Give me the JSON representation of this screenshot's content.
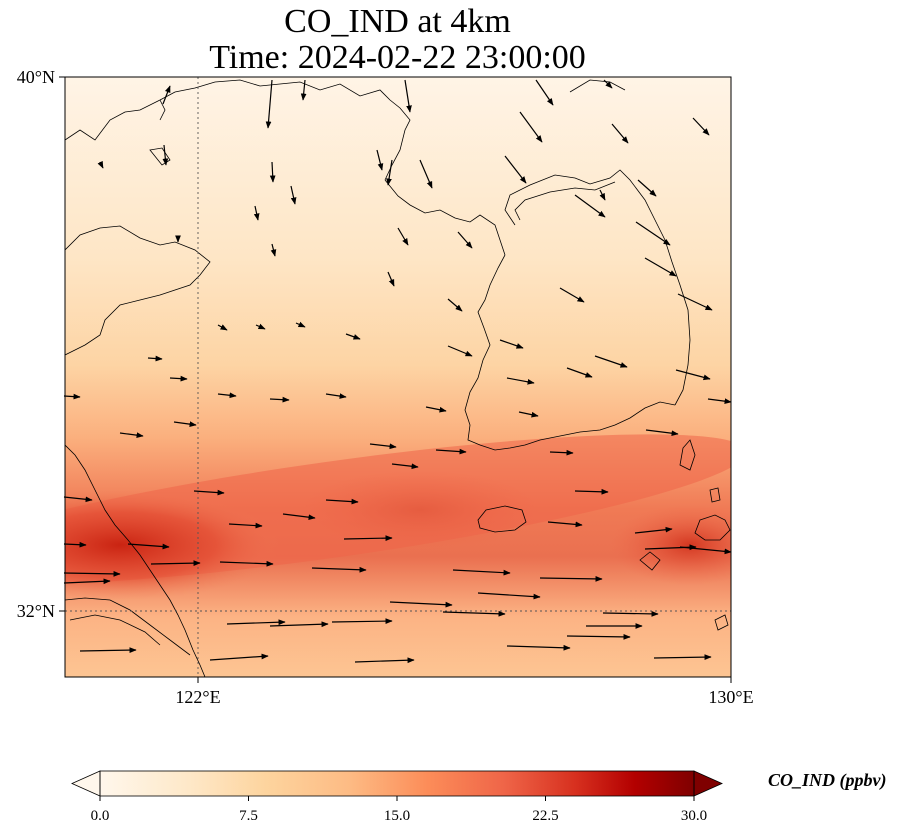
{
  "figure": {
    "title_line1": "CO_IND at 4km",
    "title_line2": "Time: 2024-02-22 23:00:00"
  },
  "map": {
    "extent": {
      "lon_min": 120.0,
      "lon_max": 130.0,
      "lat_min": 31.0,
      "lat_max": 40.0
    },
    "lat_ticks": [
      {
        "value": 40,
        "label": "40°N"
      },
      {
        "value": 32,
        "label": "32°N"
      }
    ],
    "lon_ticks": [
      {
        "value": 122,
        "label": "122°E"
      },
      {
        "value": 130,
        "label": "130°E"
      }
    ],
    "gridlines": "dotted, at 122°E and 32°N",
    "field": "CO_IND",
    "colormap": "OrRd",
    "vectors": "wind arrows (black)"
  },
  "colorbar": {
    "label": "CO_IND (ppbv)",
    "min": 0.0,
    "max": 30.0,
    "ticks": [
      "0.0",
      "7.5",
      "15.0",
      "22.5",
      "30.0"
    ],
    "extend": "both",
    "colors": [
      "#fff7ec",
      "#fee8c8",
      "#fdd49e",
      "#fdbb84",
      "#fc8d59",
      "#ef6548",
      "#d7301f",
      "#b30000",
      "#7f0000"
    ]
  }
}
